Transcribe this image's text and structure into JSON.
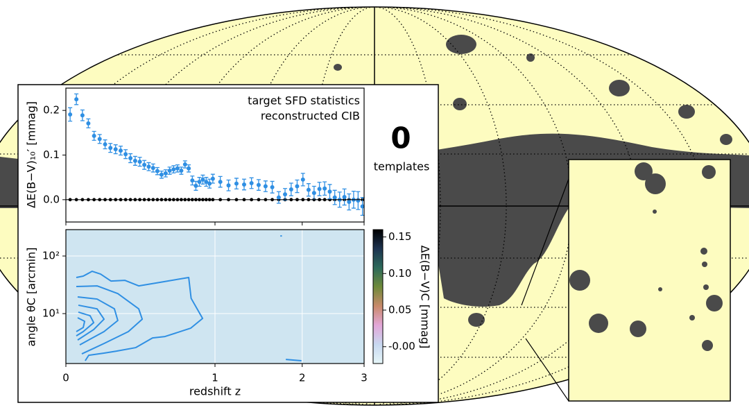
{
  "chart_data": [
    {
      "type": "scatter",
      "annotations": [
        "0",
        "templates"
      ],
      "ylabel": "ΔE(B−V)₁₀′  [mmag]",
      "xscale": "log1p",
      "xlim": [
        0,
        3
      ],
      "ylim": [
        -0.05,
        0.25
      ],
      "yticks": [
        {
          "value": 0,
          "label": "0.0"
        },
        {
          "value": 0.1,
          "label": "0.1"
        },
        {
          "value": 0.2,
          "label": "0.2"
        }
      ],
      "x": [
        0.02,
        0.05,
        0.08,
        0.11,
        0.14,
        0.17,
        0.2,
        0.23,
        0.26,
        0.29,
        0.32,
        0.35,
        0.38,
        0.41,
        0.44,
        0.47,
        0.5,
        0.53,
        0.56,
        0.59,
        0.62,
        0.65,
        0.68,
        0.71,
        0.74,
        0.77,
        0.8,
        0.83,
        0.86,
        0.89,
        0.92,
        0.95,
        0.98,
        1.05,
        1.13,
        1.21,
        1.29,
        1.37,
        1.45,
        1.53,
        1.61,
        1.69,
        1.77,
        1.85,
        1.93,
        2.01,
        2.09,
        2.17,
        2.25,
        2.33,
        2.41,
        2.49,
        2.57,
        2.65,
        2.73,
        2.81,
        2.89,
        2.97
      ],
      "series": [
        {
          "name": "target SFD statistics",
          "color": "#2f8fe3",
          "values": [
            0.191,
            0.225,
            0.189,
            0.171,
            0.143,
            0.136,
            0.124,
            0.116,
            0.113,
            0.11,
            0.102,
            0.093,
            0.087,
            0.085,
            0.078,
            0.074,
            0.071,
            0.064,
            0.056,
            0.059,
            0.065,
            0.068,
            0.07,
            0.065,
            0.079,
            0.07,
            0.043,
            0.031,
            0.04,
            0.045,
            0.04,
            0.036,
            0.047,
            0.04,
            0.032,
            0.036,
            0.034,
            0.037,
            0.033,
            0.03,
            0.028,
            0.005,
            0.012,
            0.023,
            0.03,
            0.045,
            0.022,
            0.015,
            0.024,
            0.025,
            0.018,
            0.005,
            0.0,
            0.006,
            -0.005,
            0.0,
            -0.002,
            -0.015
          ],
          "errors": [
            0.015,
            0.012,
            0.012,
            0.01,
            0.01,
            0.01,
            0.01,
            0.01,
            0.01,
            0.01,
            0.01,
            0.01,
            0.01,
            0.01,
            0.01,
            0.009,
            0.009,
            0.008,
            0.008,
            0.008,
            0.008,
            0.008,
            0.008,
            0.008,
            0.008,
            0.008,
            0.01,
            0.01,
            0.01,
            0.01,
            0.01,
            0.01,
            0.01,
            0.012,
            0.012,
            0.012,
            0.012,
            0.012,
            0.012,
            0.012,
            0.013,
            0.013,
            0.013,
            0.014,
            0.014,
            0.014,
            0.014,
            0.015,
            0.015,
            0.015,
            0.016,
            0.016,
            0.017,
            0.018,
            0.018,
            0.019,
            0.02,
            0.02
          ]
        },
        {
          "name": "reconstructed CIB",
          "color": "#000000",
          "values": [
            0,
            0,
            0,
            0,
            0,
            0,
            0,
            0,
            0,
            0,
            0,
            0,
            0,
            0,
            0,
            0,
            0,
            0,
            0,
            0,
            0,
            0,
            0,
            0,
            0,
            0,
            0,
            0,
            0,
            0,
            0,
            0,
            0,
            0,
            0,
            0,
            0,
            0,
            0,
            0,
            0,
            0,
            0,
            0,
            0,
            0,
            0,
            0,
            0,
            0,
            0,
            0,
            0,
            0,
            0,
            0,
            0,
            0
          ]
        }
      ]
    },
    {
      "type": "contour",
      "xlabel": "redshift z",
      "ylabel": "angle  θC  [arcmin]",
      "xscale": "log1p",
      "yscale": "log",
      "xlim": [
        0,
        3
      ],
      "xticks": [
        0,
        1,
        2,
        3
      ],
      "ylim": [
        1.36,
        287
      ],
      "yticks": [
        {
          "value": 10,
          "label": "10¹"
        },
        {
          "value": 100,
          "label": "10²"
        }
      ],
      "grid": true,
      "background": "#cfe5f1",
      "color": "#2f8fe3",
      "series": [
        {
          "x": [
            0.0496,
            0.084,
            0.13,
            0.175,
            0.233,
            0.315,
            0.403,
            0.545,
            0.77,
            0.79,
            0.888,
            0.786,
            0.585,
            0.496,
            0.384,
            0.265,
            0.194,
            0.112,
            0.094
          ],
          "values": [
            42.4,
            44.8,
            54.3,
            48.6,
            36.8,
            37.8,
            30.3,
            34.8,
            42.4,
            18.4,
            8.24,
            5.58,
            4.0,
            3.78,
            2.57,
            2.23,
            2.06,
            1.89,
            1.52
          ]
        },
        {
          "x": [
            0.0496,
            0.156,
            0.273,
            0.403,
            0.426,
            0.337,
            0.194,
            0.077
          ],
          "values": [
            29.5,
            30.3,
            22.3,
            12.1,
            8.0,
            4.87,
            3.03,
            2.0
          ]
        },
        {
          "x": [
            0.0563,
            0.156,
            0.253,
            0.273,
            0.194,
            0.0666
          ],
          "values": [
            19.5,
            17.9,
            12.1,
            7.59,
            4.87,
            2.87
          ]
        },
        {
          "x": [
            0.0598,
            0.156,
            0.194,
            0.138,
            0.0563
          ],
          "values": [
            14.0,
            12.1,
            8.0,
            5.28,
            3.48
          ]
        },
        {
          "x": [
            0.0598,
            0.119,
            0.138,
            0.084,
            0.0496
          ],
          "values": [
            10.6,
            9.2,
            6.97,
            4.87,
            4.11
          ]
        },
        {
          "x": [
            0.0563,
            0.091,
            0.084,
            0.0496
          ],
          "values": [
            8.47,
            7.36,
            5.74,
            4.87
          ]
        },
        {
          "x": [
            1.78,
            1.99
          ],
          "values": [
            1.6,
            1.52
          ]
        },
        {
          "x": [
            1.71,
            1.73
          ],
          "values": [
            223,
            223
          ]
        }
      ],
      "colorbar": {
        "label": "ΔE(B−V)C  [mmag]",
        "clim": [
          -0.023,
          0.16
        ],
        "ticks": [
          {
            "value": 0,
            "label": "-0.00"
          },
          {
            "value": 0.05,
            "label": "0.05"
          },
          {
            "value": 0.1,
            "label": "0.10"
          },
          {
            "value": 0.15,
            "label": "0.15"
          }
        ],
        "colors": [
          "#e6f6f8",
          "#c8d8f0",
          "#e3a6d8",
          "#c98a6a",
          "#6f8a3a",
          "#2d6a5a",
          "#1d3350",
          "#000000"
        ]
      }
    }
  ]
}
